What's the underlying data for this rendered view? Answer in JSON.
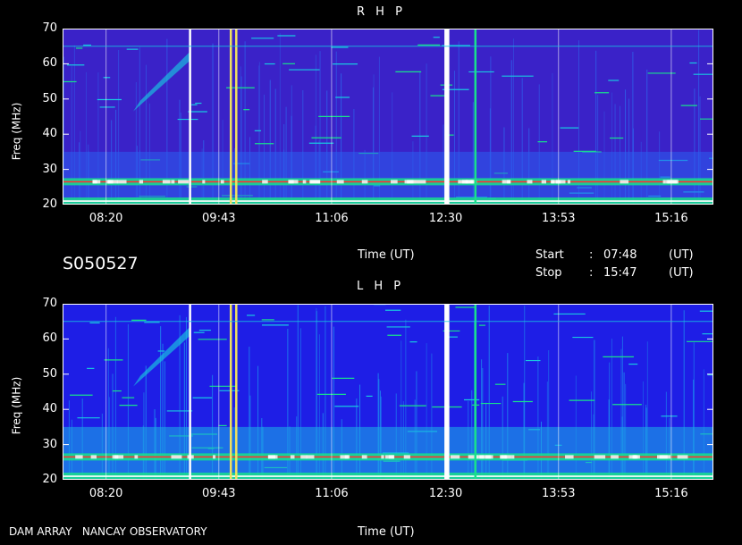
{
  "observation_code": "S050527",
  "footer_label": "DAM ARRAY   NANCAY OBSERVATORY",
  "time_axis_label": "Time (UT)",
  "start": {
    "label": "Start",
    "sep": ":",
    "value": "07:48",
    "unit": "(UT)"
  },
  "stop": {
    "label": "Stop",
    "sep": ":",
    "value": "15:47",
    "unit": "(UT)"
  },
  "colors": {
    "background": "#000000",
    "low": "#1e1ee6",
    "mid": "#18c8e0",
    "high": "#18e08c",
    "peak": "#ff3030",
    "saturated": "#ffffff"
  },
  "chart_data": [
    {
      "type": "heatmap",
      "title": "R H P",
      "ylabel": "Freq (MHz)",
      "xlabel": "Time (UT)",
      "xlim": [
        "07:48",
        "15:47"
      ],
      "ylim": [
        20,
        70
      ],
      "yticks": [
        "20",
        "30",
        "40",
        "50",
        "60",
        "70"
      ],
      "xticks": [
        "08:20",
        "09:43",
        "11:06",
        "12:30",
        "13:53",
        "15:16"
      ],
      "features": {
        "bright_bands_mhz": [
          26.5,
          21
        ],
        "burst_times": [
          "09:22",
          "09:52",
          "09:56",
          "12:30",
          "12:32",
          "12:52"
        ],
        "drifting_burst": {
          "start": "08:40",
          "end": "09:22",
          "freq_from": 48,
          "freq_to": 62
        }
      }
    },
    {
      "type": "heatmap",
      "title": "L H P",
      "ylabel": "Freq (MHz)",
      "xlabel": "Time (UT)",
      "xlim": [
        "07:48",
        "15:47"
      ],
      "ylim": [
        20,
        70
      ],
      "yticks": [
        "20",
        "30",
        "40",
        "50",
        "60",
        "70"
      ],
      "xticks": [
        "08:20",
        "09:43",
        "11:06",
        "12:30",
        "13:53",
        "15:16"
      ],
      "features": {
        "bright_bands_mhz": [
          26.5,
          21
        ],
        "burst_times": [
          "09:22",
          "09:52",
          "09:56",
          "12:30",
          "12:32",
          "12:52"
        ],
        "drifting_burst": {
          "start": "08:40",
          "end": "09:22",
          "freq_from": 48,
          "freq_to": 62
        }
      }
    }
  ]
}
